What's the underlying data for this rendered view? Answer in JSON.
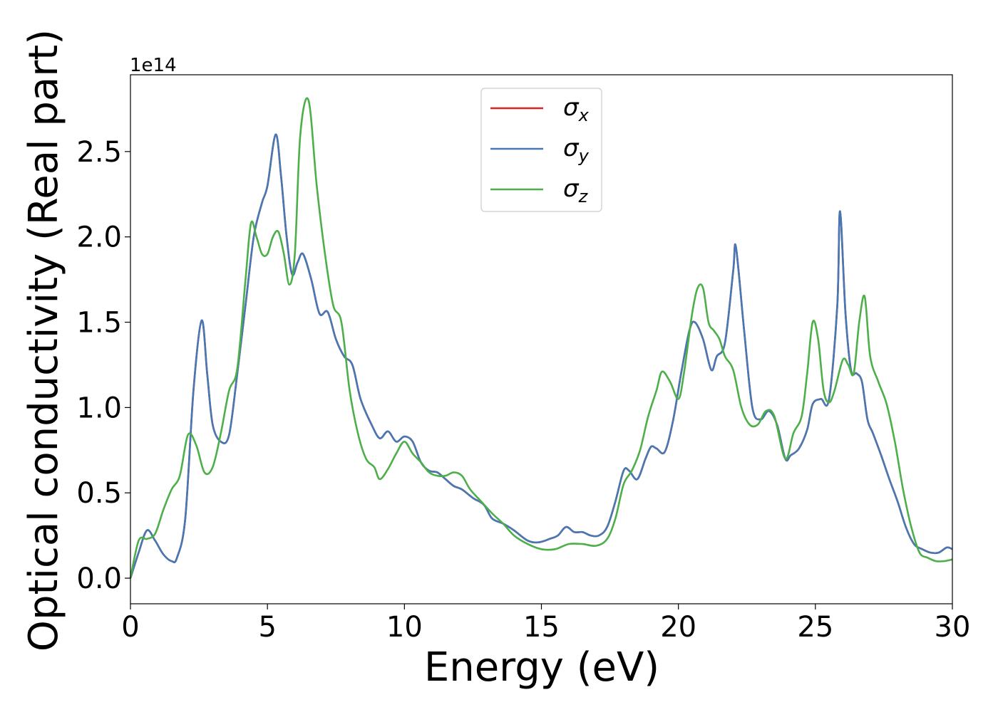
{
  "chart_data": {
    "type": "line",
    "title": "",
    "xlabel": "Energy (eV)",
    "ylabel": "Optical conductivity (Real part)",
    "y_offset_label": "1e14",
    "xlim": [
      0,
      30
    ],
    "ylim": [
      -0.15,
      2.95
    ],
    "x_ticks": [
      0,
      5,
      10,
      15,
      20,
      25,
      30
    ],
    "x_tick_labels": [
      "0",
      "5",
      "10",
      "15",
      "20",
      "25",
      "30"
    ],
    "y_ticks": [
      0,
      0.5,
      1.0,
      1.5,
      2.0,
      2.5
    ],
    "y_tick_labels": [
      "0.0",
      "0.5",
      "1.0",
      "1.5",
      "2.0",
      "2.5"
    ],
    "grid": false,
    "legend_position": "top-center",
    "series": [
      {
        "name_symbol": "σ",
        "name_sub": "x",
        "color": "#d62728",
        "x": [
          0,
          0.3,
          0.6,
          0.9,
          1.2,
          1.5,
          1.7,
          2.0,
          2.3,
          2.6,
          2.8,
          3.0,
          3.3,
          3.6,
          3.9,
          4.2,
          4.5,
          4.8,
          5.0,
          5.3,
          5.5,
          5.7,
          5.9,
          6.1,
          6.3,
          6.6,
          6.9,
          7.2,
          7.5,
          7.8,
          8.1,
          8.4,
          8.8,
          9.1,
          9.4,
          9.7,
          10.0,
          10.3,
          10.6,
          10.9,
          11.2,
          11.5,
          11.8,
          12.1,
          12.5,
          12.9,
          13.2,
          13.6,
          14.0,
          14.5,
          14.9,
          15.3,
          15.6,
          15.9,
          16.2,
          16.5,
          16.8,
          17.1,
          17.4,
          17.7,
          18.0,
          18.2,
          18.5,
          18.8,
          19.0,
          19.2,
          19.5,
          19.8,
          20.1,
          20.4,
          20.6,
          20.9,
          21.2,
          21.4,
          21.7,
          22.0,
          22.1,
          22.4,
          22.7,
          23.0,
          23.3,
          23.6,
          23.9,
          24.1,
          24.4,
          24.7,
          24.9,
          25.2,
          25.5,
          25.8,
          25.9,
          26.1,
          26.3,
          26.5,
          26.7,
          26.9,
          27.1,
          27.4,
          27.7,
          28.0,
          28.3,
          28.6,
          28.9,
          29.2,
          29.5,
          29.8,
          30.0
        ],
        "values": [
          0,
          0.15,
          0.28,
          0.22,
          0.14,
          0.1,
          0.12,
          0.35,
          1.1,
          1.51,
          1.2,
          0.9,
          0.8,
          0.84,
          1.2,
          1.6,
          2.0,
          2.2,
          2.3,
          2.6,
          2.35,
          2.0,
          1.78,
          1.85,
          1.9,
          1.75,
          1.55,
          1.56,
          1.4,
          1.3,
          1.25,
          1.05,
          0.9,
          0.82,
          0.86,
          0.8,
          0.83,
          0.8,
          0.68,
          0.63,
          0.62,
          0.58,
          0.54,
          0.52,
          0.47,
          0.43,
          0.35,
          0.32,
          0.28,
          0.22,
          0.21,
          0.23,
          0.25,
          0.3,
          0.27,
          0.27,
          0.25,
          0.25,
          0.3,
          0.45,
          0.63,
          0.63,
          0.58,
          0.7,
          0.77,
          0.76,
          0.74,
          0.92,
          1.2,
          1.45,
          1.5,
          1.4,
          1.22,
          1.3,
          1.38,
          1.8,
          1.94,
          1.45,
          1.0,
          0.93,
          0.98,
          0.9,
          0.7,
          0.72,
          0.76,
          0.87,
          1.02,
          1.05,
          1.05,
          1.6,
          2.15,
          1.55,
          1.22,
          1.2,
          1.15,
          0.93,
          0.85,
          0.72,
          0.58,
          0.45,
          0.3,
          0.2,
          0.17,
          0.15,
          0.15,
          0.18,
          0.17
        ]
      },
      {
        "name_symbol": "σ",
        "name_sub": "y",
        "color": "#4678b4",
        "x": [
          0,
          0.3,
          0.6,
          0.9,
          1.2,
          1.5,
          1.7,
          2.0,
          2.3,
          2.6,
          2.8,
          3.0,
          3.3,
          3.6,
          3.9,
          4.2,
          4.5,
          4.8,
          5.0,
          5.3,
          5.5,
          5.7,
          5.9,
          6.1,
          6.3,
          6.6,
          6.9,
          7.2,
          7.5,
          7.8,
          8.1,
          8.4,
          8.8,
          9.1,
          9.4,
          9.7,
          10.0,
          10.3,
          10.6,
          10.9,
          11.2,
          11.5,
          11.8,
          12.1,
          12.5,
          12.9,
          13.2,
          13.6,
          14.0,
          14.5,
          14.9,
          15.3,
          15.6,
          15.9,
          16.2,
          16.5,
          16.8,
          17.1,
          17.4,
          17.7,
          18.0,
          18.2,
          18.5,
          18.8,
          19.0,
          19.2,
          19.5,
          19.8,
          20.1,
          20.4,
          20.6,
          20.9,
          21.2,
          21.4,
          21.7,
          22.0,
          22.1,
          22.4,
          22.7,
          23.0,
          23.3,
          23.6,
          23.9,
          24.1,
          24.4,
          24.7,
          24.9,
          25.2,
          25.5,
          25.8,
          25.9,
          26.1,
          26.3,
          26.5,
          26.7,
          26.9,
          27.1,
          27.4,
          27.7,
          28.0,
          28.3,
          28.6,
          28.9,
          29.2,
          29.5,
          29.8,
          30.0
        ],
        "values": [
          0,
          0.15,
          0.28,
          0.22,
          0.14,
          0.1,
          0.12,
          0.35,
          1.1,
          1.51,
          1.2,
          0.9,
          0.8,
          0.84,
          1.2,
          1.6,
          2.0,
          2.2,
          2.3,
          2.6,
          2.35,
          2.0,
          1.78,
          1.85,
          1.9,
          1.75,
          1.55,
          1.56,
          1.4,
          1.3,
          1.25,
          1.05,
          0.9,
          0.82,
          0.86,
          0.8,
          0.83,
          0.8,
          0.68,
          0.63,
          0.62,
          0.58,
          0.54,
          0.52,
          0.47,
          0.43,
          0.35,
          0.32,
          0.28,
          0.22,
          0.21,
          0.23,
          0.25,
          0.3,
          0.27,
          0.27,
          0.25,
          0.25,
          0.3,
          0.45,
          0.63,
          0.63,
          0.58,
          0.7,
          0.77,
          0.76,
          0.74,
          0.92,
          1.2,
          1.45,
          1.5,
          1.4,
          1.22,
          1.3,
          1.38,
          1.8,
          1.94,
          1.45,
          1.0,
          0.93,
          0.98,
          0.9,
          0.7,
          0.72,
          0.76,
          0.87,
          1.02,
          1.05,
          1.05,
          1.6,
          2.15,
          1.55,
          1.22,
          1.2,
          1.15,
          0.93,
          0.85,
          0.72,
          0.58,
          0.45,
          0.3,
          0.2,
          0.17,
          0.15,
          0.15,
          0.18,
          0.17
        ]
      },
      {
        "name_symbol": "σ",
        "name_sub": "z",
        "color": "#4daf4a",
        "x": [
          0,
          0.3,
          0.6,
          0.9,
          1.2,
          1.5,
          1.8,
          2.1,
          2.4,
          2.7,
          3.0,
          3.3,
          3.6,
          3.9,
          4.2,
          4.4,
          4.6,
          4.8,
          5.0,
          5.2,
          5.4,
          5.6,
          5.8,
          6.0,
          6.2,
          6.5,
          6.8,
          7.1,
          7.4,
          7.7,
          8.0,
          8.3,
          8.6,
          8.9,
          9.1,
          9.4,
          9.7,
          10.0,
          10.3,
          10.6,
          10.9,
          11.2,
          11.5,
          11.8,
          12.1,
          12.4,
          12.8,
          13.2,
          13.6,
          14.0,
          14.5,
          15.0,
          15.5,
          16.0,
          16.5,
          17.0,
          17.4,
          17.7,
          18.0,
          18.3,
          18.6,
          18.9,
          19.2,
          19.4,
          19.7,
          20.0,
          20.2,
          20.5,
          20.7,
          20.9,
          21.1,
          21.3,
          21.5,
          21.7,
          22.0,
          22.3,
          22.6,
          22.9,
          23.2,
          23.5,
          23.9,
          24.2,
          24.5,
          24.7,
          24.9,
          25.1,
          25.3,
          25.5,
          25.7,
          26.0,
          26.2,
          26.4,
          26.6,
          26.8,
          27.0,
          27.3,
          27.6,
          27.9,
          28.2,
          28.5,
          28.8,
          29.1,
          29.4,
          29.7,
          30.0
        ],
        "values": [
          0,
          0.22,
          0.23,
          0.26,
          0.4,
          0.52,
          0.6,
          0.84,
          0.78,
          0.62,
          0.65,
          0.85,
          1.1,
          1.23,
          1.75,
          2.08,
          2.0,
          1.9,
          1.9,
          2.0,
          2.03,
          1.9,
          1.72,
          1.9,
          2.6,
          2.8,
          2.3,
          1.9,
          1.6,
          1.5,
          1.1,
          0.85,
          0.7,
          0.65,
          0.58,
          0.64,
          0.73,
          0.8,
          0.73,
          0.68,
          0.62,
          0.6,
          0.6,
          0.62,
          0.6,
          0.52,
          0.45,
          0.38,
          0.32,
          0.25,
          0.2,
          0.17,
          0.17,
          0.2,
          0.2,
          0.19,
          0.23,
          0.35,
          0.55,
          0.63,
          0.75,
          0.95,
          1.1,
          1.21,
          1.15,
          1.05,
          1.2,
          1.55,
          1.7,
          1.7,
          1.5,
          1.45,
          1.4,
          1.3,
          1.22,
          1.0,
          0.9,
          0.9,
          0.98,
          0.95,
          0.7,
          0.85,
          0.95,
          1.2,
          1.5,
          1.4,
          1.1,
          1.03,
          1.1,
          1.28,
          1.25,
          1.2,
          1.5,
          1.65,
          1.3,
          1.15,
          1.02,
          0.8,
          0.52,
          0.3,
          0.15,
          0.12,
          0.1,
          0.1,
          0.11
        ]
      }
    ]
  }
}
